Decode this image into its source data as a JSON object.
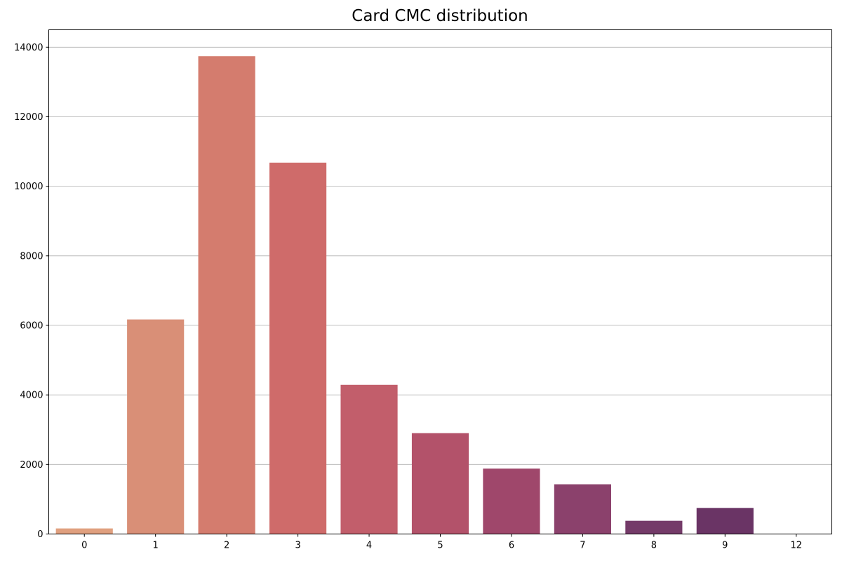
{
  "chart_data": {
    "type": "bar",
    "title": "Card CMC distribution",
    "xlabel": "",
    "ylabel": "",
    "categories": [
      "0",
      "1",
      "2",
      "3",
      "4",
      "5",
      "6",
      "7",
      "8",
      "9",
      "12"
    ],
    "values": [
      160,
      6170,
      13740,
      10680,
      4290,
      2900,
      1880,
      1430,
      380,
      750,
      5
    ],
    "colors": [
      "#e0a07f",
      "#d98f77",
      "#d47c6e",
      "#cf6b6a",
      "#c25e6b",
      "#b3526a",
      "#9f476b",
      "#8b416c",
      "#743b69",
      "#6a3465",
      "#5a2d60"
    ],
    "ylim": [
      0,
      14500
    ],
    "yticks": [
      0,
      2000,
      4000,
      6000,
      8000,
      10000,
      12000,
      14000
    ],
    "grid": "y"
  }
}
